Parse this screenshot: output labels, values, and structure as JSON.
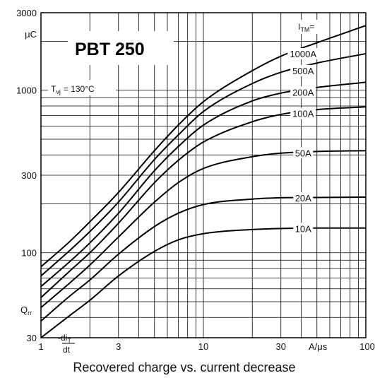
{
  "chart_data": {
    "type": "line",
    "title": "PBT 250",
    "caption": "Recovered charge vs. current decrease",
    "condition": {
      "symbol": "T",
      "subscript": "vj",
      "text": "= 130°C"
    },
    "y_axis": {
      "symbol": "Q",
      "subscript": "rr",
      "unit": "μC",
      "scale": "log",
      "range": [
        30,
        3000
      ],
      "tick_labels": [
        "30",
        "100",
        "300",
        "1000",
        "3000"
      ]
    },
    "x_axis": {
      "symbol": "-di",
      "subscript": "T",
      "denominator": "dt",
      "unit": "A/μs",
      "scale": "log",
      "range": [
        1,
        100
      ],
      "tick_labels": [
        "1",
        "3",
        "10",
        "30",
        "100"
      ]
    },
    "legend_header": {
      "symbol": "I",
      "subscript": "TM",
      "suffix": "="
    },
    "grid": true,
    "series": [
      {
        "name": "10A",
        "x": [
          1,
          1.5,
          2,
          3,
          5,
          7,
          10,
          20,
          30,
          50,
          100
        ],
        "y": [
          30,
          41,
          51,
          72,
          102,
          120,
          131,
          139,
          141,
          142,
          142
        ]
      },
      {
        "name": "20A",
        "x": [
          1,
          1.5,
          2,
          3,
          5,
          7,
          10,
          20,
          30,
          50,
          100
        ],
        "y": [
          38,
          54,
          68,
          98,
          145,
          175,
          198,
          214,
          218,
          219,
          220
        ]
      },
      {
        "name": "50A",
        "x": [
          1,
          1.5,
          2,
          3,
          5,
          7,
          10,
          20,
          30,
          50,
          100
        ],
        "y": [
          46,
          65,
          84,
          125,
          205,
          270,
          330,
          390,
          410,
          420,
          425
        ]
      },
      {
        "name": "100A",
        "x": [
          1,
          1.5,
          2,
          3,
          5,
          7,
          10,
          20,
          30,
          50,
          100
        ],
        "y": [
          53,
          77,
          100,
          152,
          270,
          370,
          480,
          640,
          710,
          760,
          790
        ]
      },
      {
        "name": "200A",
        "x": [
          1,
          1.5,
          2,
          3,
          5,
          7,
          10,
          20,
          30,
          50,
          100
        ],
        "y": [
          62,
          88,
          115,
          175,
          320,
          450,
          610,
          860,
          960,
          1040,
          1120
        ]
      },
      {
        "name": "500A",
        "x": [
          1,
          1.5,
          2,
          3,
          5,
          7,
          10,
          20,
          30,
          50,
          100
        ],
        "y": [
          72,
          103,
          135,
          205,
          375,
          530,
          740,
          1100,
          1290,
          1470,
          1680
        ]
      },
      {
        "name": "1000A",
        "x": [
          1,
          1.5,
          2,
          3,
          5,
          7,
          10,
          20,
          30,
          50,
          100
        ],
        "y": [
          82,
          117,
          155,
          235,
          425,
          610,
          850,
          1320,
          1620,
          1960,
          2500
        ]
      }
    ]
  }
}
